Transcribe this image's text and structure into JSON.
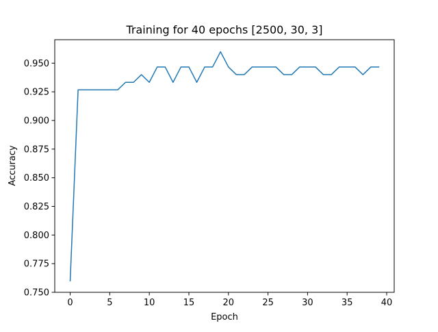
{
  "chart_data": {
    "type": "line",
    "title": "Training for 40 epochs [2500, 30, 3]",
    "xlabel": "Epoch",
    "ylabel": "Accuracy",
    "xlim": [
      -1.95,
      40.95
    ],
    "ylim": [
      0.75,
      0.9705
    ],
    "xticks": [
      0,
      5,
      10,
      15,
      20,
      25,
      30,
      35,
      40
    ],
    "yticks": [
      0.75,
      0.775,
      0.8,
      0.825,
      0.85,
      0.875,
      0.9,
      0.925,
      0.95
    ],
    "ytick_labels": [
      "0.750",
      "0.775",
      "0.800",
      "0.825",
      "0.850",
      "0.875",
      "0.900",
      "0.925",
      "0.950"
    ],
    "grid": false,
    "legend": "none",
    "line_color": "#1f77b4",
    "x": [
      0,
      1,
      2,
      3,
      4,
      5,
      6,
      7,
      8,
      9,
      10,
      11,
      12,
      13,
      14,
      15,
      16,
      17,
      18,
      19,
      20,
      21,
      22,
      23,
      24,
      25,
      26,
      27,
      28,
      29,
      30,
      31,
      32,
      33,
      34,
      35,
      36,
      37,
      38,
      39
    ],
    "series": [
      {
        "values": [
          0.76,
          0.9267,
          0.9267,
          0.9267,
          0.9267,
          0.9267,
          0.9267,
          0.9333,
          0.9333,
          0.94,
          0.9333,
          0.9467,
          0.9467,
          0.9333,
          0.9467,
          0.9467,
          0.9333,
          0.9467,
          0.9467,
          0.96,
          0.9467,
          0.94,
          0.94,
          0.9467,
          0.9467,
          0.9467,
          0.9467,
          0.94,
          0.94,
          0.9467,
          0.9467,
          0.9467,
          0.94,
          0.94,
          0.9467,
          0.9467,
          0.9467,
          0.94,
          0.9467,
          0.9467
        ]
      }
    ]
  }
}
